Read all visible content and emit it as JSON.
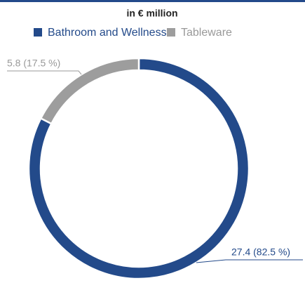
{
  "chart_data": {
    "type": "donut",
    "title": "in € million",
    "categories": [
      "Bathroom and Wellness",
      "Tableware"
    ],
    "series": [
      {
        "name": "Bathroom and Wellness",
        "color": "#234a8a"
      },
      {
        "name": "Tableware",
        "color": "#9d9d9d"
      }
    ],
    "values": [
      27.4,
      5.8
    ],
    "value_labels": [
      "27.4 (82.5 %)",
      "5.8 (17.5 %)"
    ],
    "legend": "top"
  }
}
